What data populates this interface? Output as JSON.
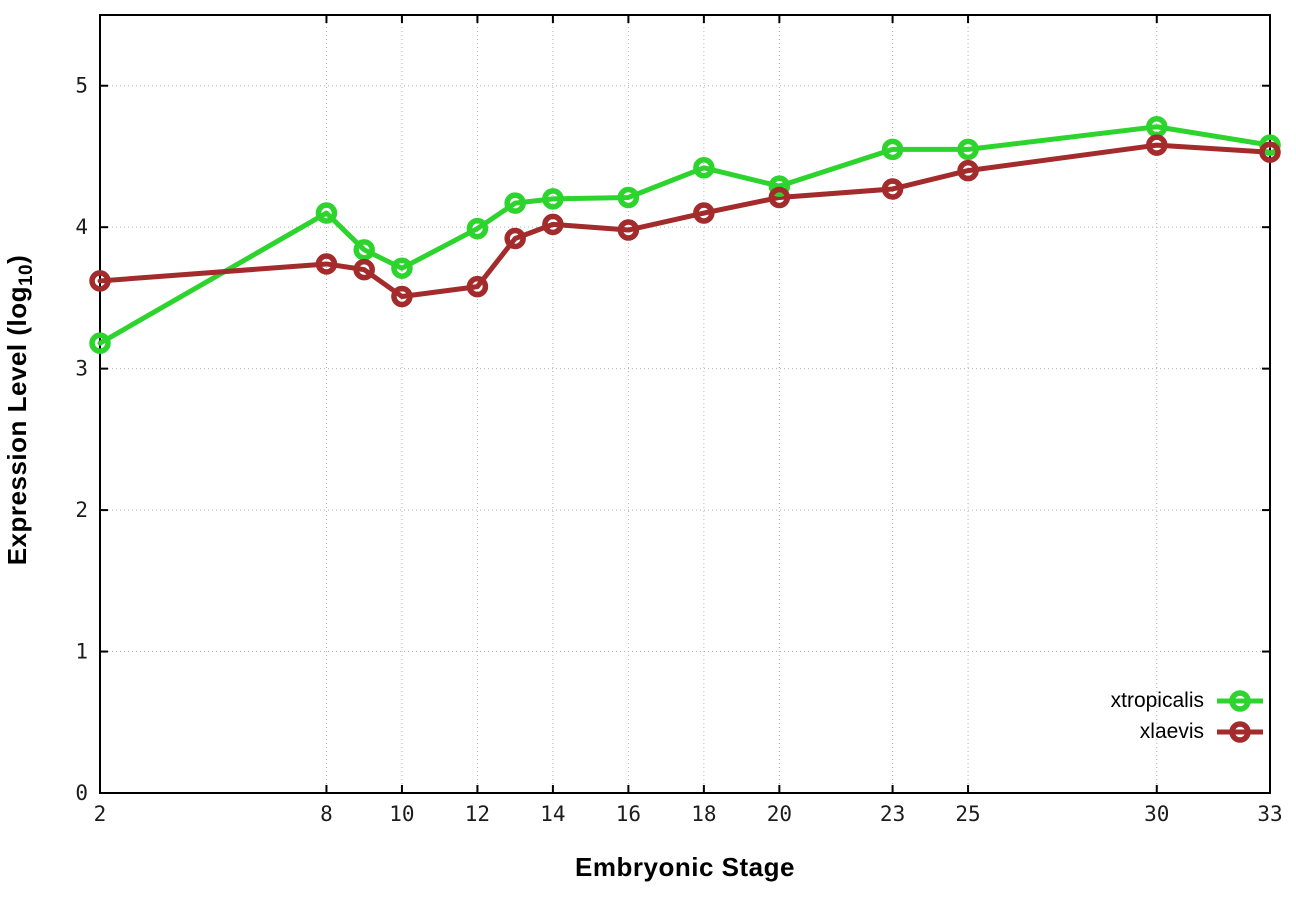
{
  "chart_data": {
    "type": "line",
    "title": "",
    "xlabel": "Embryonic Stage",
    "ylabel": "Expression Level (log10)",
    "ylabel_parts": {
      "prefix": "Expression Level (log",
      "subscript": "10",
      "suffix": ")"
    },
    "x": [
      2,
      8,
      9,
      10,
      12,
      13,
      14,
      16,
      18,
      20,
      23,
      25,
      30,
      33
    ],
    "xticks": [
      2,
      8,
      10,
      12,
      14,
      16,
      18,
      20,
      23,
      25,
      30,
      33
    ],
    "xtick_labels": [
      "2",
      "8",
      "10",
      "12",
      "14",
      "16",
      "18",
      "20",
      "23",
      "25",
      "30",
      "33"
    ],
    "yticks": [
      0,
      1,
      2,
      3,
      4,
      5
    ],
    "ytick_labels": [
      "0",
      "1",
      "2",
      "3",
      "4",
      "5"
    ],
    "xlim": [
      2,
      33
    ],
    "ylim": [
      0,
      5.5
    ],
    "grid": true,
    "grid_color": "#b4b4b4",
    "legend_position": "bottom-right",
    "marker": "open-circle",
    "series": [
      {
        "name": "xtropicalis",
        "color": "#2dd42d",
        "values": [
          3.18,
          4.1,
          3.84,
          3.71,
          3.99,
          4.17,
          4.2,
          4.21,
          4.42,
          4.29,
          4.55,
          4.55,
          4.71,
          4.58
        ]
      },
      {
        "name": "xlaevis",
        "color": "#a32b2b",
        "values": [
          3.62,
          3.74,
          3.7,
          3.51,
          3.58,
          3.92,
          4.02,
          3.98,
          4.1,
          4.21,
          4.27,
          4.4,
          4.58,
          4.53
        ]
      }
    ]
  },
  "frame_color": "#000000",
  "background_color": "#ffffff"
}
